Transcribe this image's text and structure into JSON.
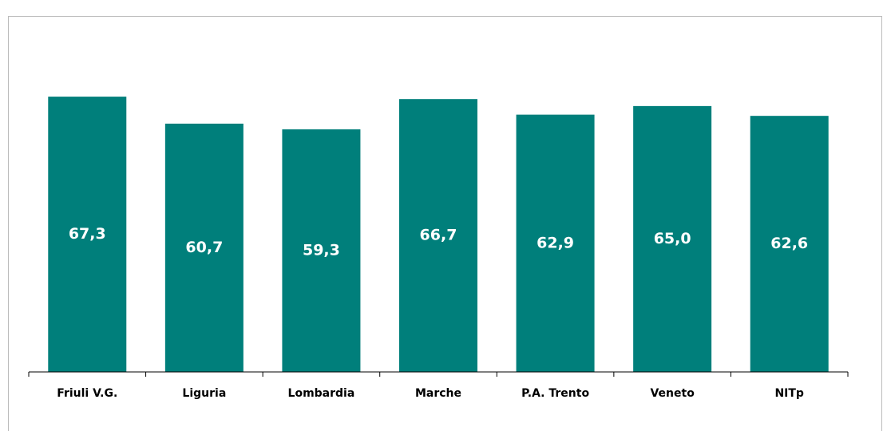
{
  "chart_data": {
    "type": "bar",
    "categories": [
      "Friuli V.G.",
      "Liguria",
      "Lombardia",
      "Marche",
      "P.A. Trento",
      "Veneto",
      "NITp"
    ],
    "values": [
      67.3,
      60.7,
      59.3,
      66.7,
      62.9,
      65.0,
      62.6
    ],
    "value_labels": [
      "67,3",
      "60,7",
      "59,3",
      "66,7",
      "62,9",
      "65,0",
      "62,6"
    ],
    "color": "#007f7b",
    "ylim": [
      0,
      80
    ]
  }
}
